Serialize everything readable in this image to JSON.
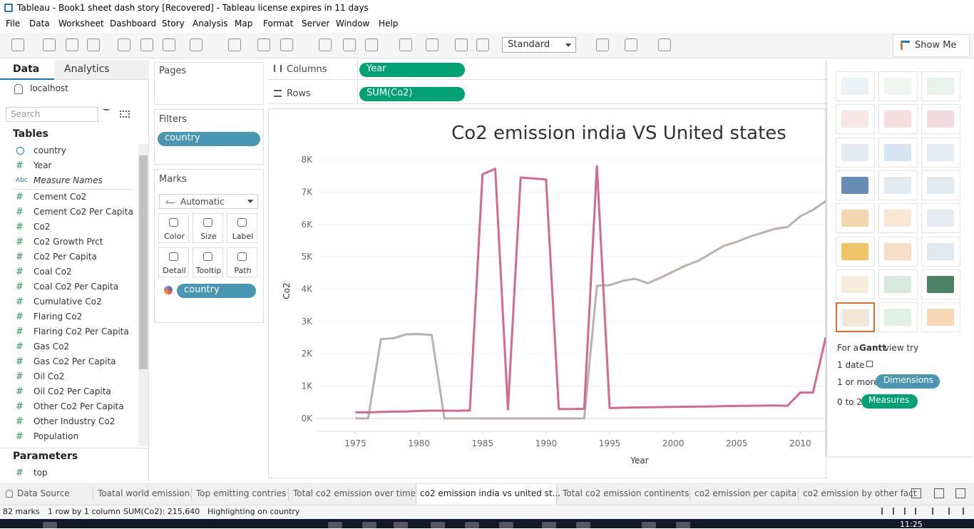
{
  "window_title": "Tableau - Book1 sheet dash story [Recovered] - Tableau license expires in 11 days",
  "menu": [
    "File",
    "Data",
    "Worksheet",
    "Dashboard",
    "Story",
    "Analysis",
    "Map",
    "Format",
    "Server",
    "Window",
    "Help"
  ],
  "toolbar": {
    "view_size": "Standard",
    "show_me": "Show Me"
  },
  "data_pane": {
    "tabs": [
      "Data",
      "Analytics"
    ],
    "connection": "localhost",
    "search_placeholder": "Search",
    "tables_heading": "Tables",
    "fields": [
      {
        "label": "country"
      },
      {
        "icon": "#",
        "label": "Year"
      },
      {
        "icon": "Abc",
        "label": "Measure Names"
      },
      {
        "icon": "#",
        "label": "Cement Co2"
      },
      {
        "icon": "#",
        "label": "Cement Co2 Per Capita"
      },
      {
        "icon": "#",
        "label": "Co2"
      },
      {
        "icon": "#",
        "label": "Co2 Growth Prct"
      },
      {
        "icon": "#",
        "label": "Co2 Per Capita"
      },
      {
        "icon": "#",
        "label": "Coal Co2"
      },
      {
        "icon": "#",
        "label": "Coal Co2 Per Capita"
      },
      {
        "icon": "#",
        "label": "Cumulative Co2"
      },
      {
        "icon": "#",
        "label": "Flaring Co2"
      },
      {
        "icon": "#",
        "label": "Flaring Co2 Per Capita"
      },
      {
        "icon": "#",
        "label": "Gas Co2"
      },
      {
        "icon": "#",
        "label": "Gas Co2 Per Capita"
      },
      {
        "icon": "#",
        "label": "Oil Co2"
      },
      {
        "icon": "#",
        "label": "Oil Co2 Per Capita"
      },
      {
        "icon": "#",
        "label": "Other Co2 Per Capita"
      },
      {
        "icon": "#",
        "label": "Other Industry Co2"
      },
      {
        "icon": "#",
        "label": "Population"
      }
    ],
    "parameters_heading": "Parameters",
    "parameters": [
      {
        "icon": "#",
        "label": "top"
      }
    ]
  },
  "shelves": {
    "pages": "Pages",
    "filters": "Filters",
    "filter_pills": [
      "country"
    ],
    "marks": "Marks",
    "mark_type": "Automatic",
    "mark_buttons": [
      "Color",
      "Size",
      "Label",
      "Detail",
      "Tooltip",
      "Path"
    ],
    "mark_pills": [
      "country"
    ],
    "columns": "Columns",
    "columns_pills": [
      "Year"
    ],
    "rows": "Rows",
    "rows_pills": [
      "SUM(Co2)"
    ]
  },
  "chart_data": {
    "type": "line",
    "title": "Co2 emission india VS United states",
    "x_label": "Year",
    "y_label": "Co2",
    "x": [
      1975,
      1976,
      1977,
      1978,
      1979,
      1980,
      1981,
      1982,
      1983,
      1984,
      1985,
      1986,
      1987,
      1988,
      1989,
      1990,
      1991,
      1992,
      1993,
      1994,
      1995,
      1996,
      1997,
      1998,
      1999,
      2000,
      2001,
      2002,
      2003,
      2004,
      2005,
      2006,
      2007,
      2008,
      2009,
      2010,
      2011,
      2012
    ],
    "series": [
      {
        "color": "#bab0ac",
        "values": [
          0,
          0,
          2450,
          2480,
          2600,
          2610,
          2580,
          0,
          0,
          0,
          0,
          0,
          0,
          0,
          0,
          0,
          0,
          0,
          0,
          4100,
          4120,
          4250,
          4320,
          4180,
          4350,
          4540,
          4730,
          4880,
          5110,
          5340,
          5460,
          5620,
          5740,
          5860,
          5920,
          6250,
          6450,
          6720
        ]
      },
      {
        "color": "#d4698f",
        "values": [
          190,
          185,
          200,
          210,
          215,
          230,
          240,
          240,
          235,
          245,
          7550,
          7720,
          280,
          7450,
          7420,
          7390,
          290,
          290,
          300,
          7800,
          320,
          330,
          340,
          345,
          350,
          355,
          360,
          365,
          370,
          380,
          385,
          390,
          395,
          400,
          390,
          800,
          800,
          2500
        ]
      }
    ],
    "xlim": [
      1972,
      2012
    ],
    "xticks": [
      1975,
      1980,
      1985,
      1990,
      1995,
      2000,
      2005,
      2010
    ],
    "ylim": [
      -400,
      8200
    ],
    "yticks": [
      {
        "value": 0,
        "label": "0K"
      },
      {
        "value": 1000,
        "label": "1K"
      },
      {
        "value": 2000,
        "label": "2K"
      },
      {
        "value": 3000,
        "label": "3K"
      },
      {
        "value": 4000,
        "label": "4K"
      },
      {
        "value": 5000,
        "label": "5K"
      },
      {
        "value": 6000,
        "label": "6K"
      },
      {
        "value": 7000,
        "label": "7K"
      },
      {
        "value": 8000,
        "label": "8K"
      }
    ],
    "grid": true
  },
  "show_me": {
    "hint_prefix": "For a",
    "hint_chart": "Gantt",
    "hint_suffix": "view try",
    "req1": "1 date",
    "req2": "1 or more",
    "req2_pill": "Dimensions",
    "req3": "0 to 2",
    "req3_pill": "Measures"
  },
  "sheet_tabs": [
    "Data Source",
    "Toatal world emission",
    "Top emitting contries",
    "Total co2 emission over time",
    "co2 emission india vs united st...",
    "Total co2 emission continents",
    "co2 emission per capita",
    "co2 emission by other fact"
  ],
  "status": [
    "82 marks",
    "1 row by 1 column",
    "SUM(Co2): 215,640",
    "Highlighting on country"
  ],
  "clock": "11:25"
}
